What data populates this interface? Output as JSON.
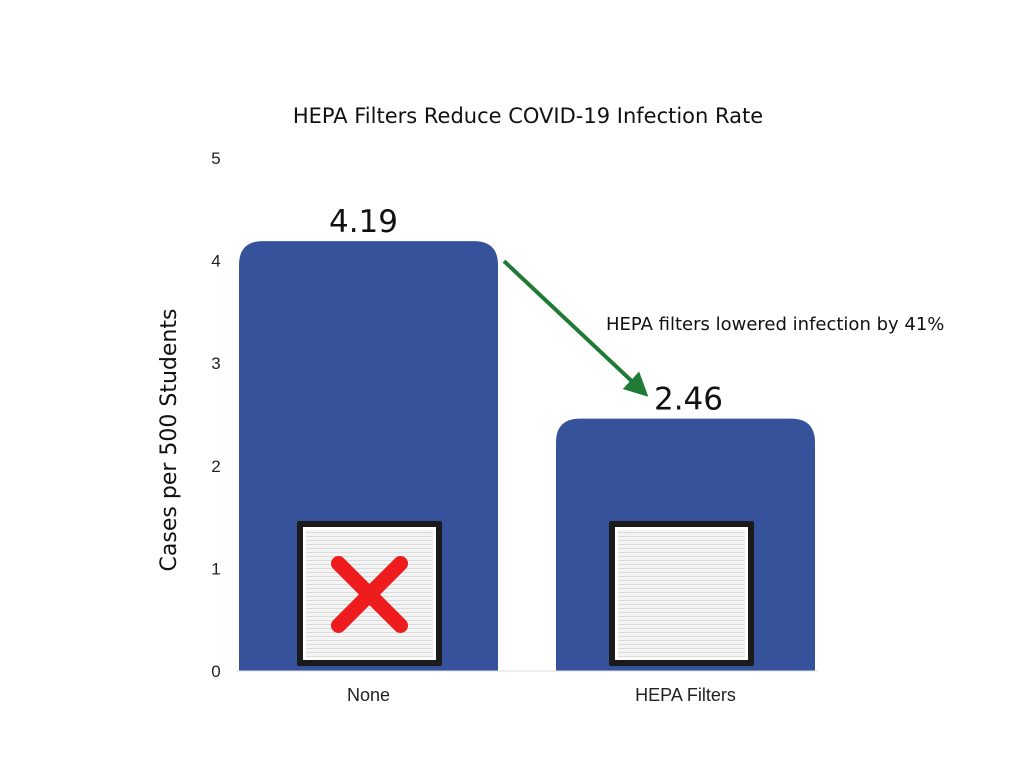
{
  "chart_data": {
    "type": "bar",
    "title": "HEPA Filters Reduce COVID-19 Infection Rate",
    "xlabel": "",
    "ylabel": "Cases per 500  Students",
    "categories": [
      "None",
      "HEPA Filters"
    ],
    "values": [
      4.19,
      2.46
    ],
    "data_labels": [
      "4.19",
      "2.46"
    ],
    "ylim": [
      0,
      5
    ],
    "yticks": [
      0,
      1,
      2,
      3,
      4,
      5
    ],
    "grid": false,
    "legend": "none",
    "annotation": {
      "text": "HEPA filters lowered infection by 41%",
      "arrow_from": "None",
      "arrow_to": "HEPA Filters"
    },
    "bar_icons": [
      "filter-with-red-x-icon",
      "filter-icon"
    ]
  },
  "colors": {
    "bar": "#36529b",
    "arrow": "#1e7a35",
    "cross": "#ee1c1c"
  }
}
